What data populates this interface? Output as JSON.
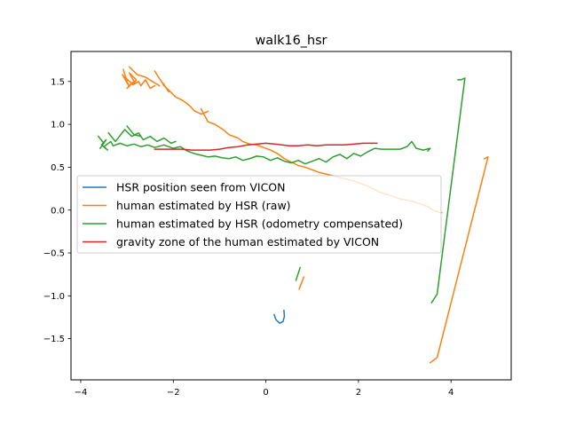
{
  "chart_data": {
    "type": "line",
    "title": "walk16_hsr",
    "xlabel": "",
    "ylabel": "",
    "xlim": [
      -4.21,
      5.3
    ],
    "ylim": [
      -1.98,
      1.85
    ],
    "xticks": [
      -4,
      -2,
      0,
      2,
      4
    ],
    "yticks": [
      -1.5,
      -1.0,
      -0.5,
      0.0,
      0.5,
      1.0,
      1.5
    ],
    "xtick_labels": [
      "−4",
      "−2",
      "0",
      "2",
      "4"
    ],
    "ytick_labels": [
      "−1.5",
      "−1.0",
      "−0.5",
      "0.0",
      "0.5",
      "1.0",
      "1.5"
    ],
    "grid": false,
    "legend_position": "center-left",
    "series": [
      {
        "name": "HSR position seen from VICON",
        "color": "#1f77b4",
        "segments": [
          [
            [
              0.18,
              -1.22
            ],
            [
              0.22,
              -1.28
            ],
            [
              0.3,
              -1.32
            ],
            [
              0.37,
              -1.3
            ],
            [
              0.4,
              -1.24
            ],
            [
              0.39,
              -1.17
            ]
          ]
        ]
      },
      {
        "name": "human estimated by HSR (raw)",
        "color": "#ff7f0e",
        "segments": [
          [
            [
              -3.08,
              1.64
            ],
            [
              -3.0,
              1.5
            ],
            [
              -3.1,
              1.58
            ],
            [
              -2.95,
              1.44
            ],
            [
              -3.05,
              1.55
            ],
            [
              -2.9,
              1.48
            ],
            [
              -3.0,
              1.42
            ],
            [
              -2.85,
              1.5
            ],
            [
              -2.95,
              1.6
            ],
            [
              -2.8,
              1.52
            ],
            [
              -2.88,
              1.46
            ],
            [
              -2.75,
              1.5
            ],
            [
              -2.7,
              1.45
            ],
            [
              -2.6,
              1.52
            ],
            [
              -2.5,
              1.42
            ],
            [
              -2.4,
              1.45
            ]
          ],
          [
            [
              -2.95,
              1.67
            ],
            [
              -2.78,
              1.58
            ],
            [
              -2.6,
              1.55
            ],
            [
              -2.45,
              1.5
            ],
            [
              -2.3,
              1.45
            ]
          ],
          [
            [
              -2.4,
              1.62
            ],
            [
              -2.2,
              1.45
            ],
            [
              -2.1,
              1.4
            ],
            [
              -1.95,
              1.32
            ],
            [
              -1.8,
              1.28
            ],
            [
              -1.65,
              1.22
            ],
            [
              -1.55,
              1.16
            ],
            [
              -1.4,
              1.12
            ],
            [
              -1.25,
              1.15
            ]
          ],
          [
            [
              -2.22,
              1.48
            ],
            [
              -2.1,
              1.38
            ]
          ],
          [
            [
              -1.4,
              1.18
            ],
            [
              -1.25,
              1.03
            ],
            [
              -1.1,
              1.0
            ],
            [
              -0.9,
              0.93
            ],
            [
              -0.8,
              0.88
            ],
            [
              -0.7,
              0.86
            ],
            [
              -0.6,
              0.84
            ],
            [
              -0.5,
              0.8
            ],
            [
              -0.35,
              0.77
            ],
            [
              -0.2,
              0.76
            ],
            [
              -0.05,
              0.73
            ],
            [
              0.1,
              0.7
            ],
            [
              0.25,
              0.66
            ],
            [
              0.4,
              0.6
            ],
            [
              0.55,
              0.56
            ],
            [
              0.7,
              0.52
            ],
            [
              0.85,
              0.5
            ],
            [
              1.0,
              0.47
            ],
            [
              1.15,
              0.44
            ],
            [
              1.3,
              0.42
            ],
            [
              1.45,
              0.4
            ],
            [
              1.6,
              0.38
            ],
            [
              1.75,
              0.36
            ],
            [
              1.9,
              0.34
            ],
            [
              2.05,
              0.31
            ],
            [
              2.2,
              0.28
            ],
            [
              2.35,
              0.24
            ],
            [
              2.5,
              0.2
            ],
            [
              2.7,
              0.17
            ],
            [
              2.9,
              0.13
            ],
            [
              3.1,
              0.11
            ],
            [
              3.25,
              0.09
            ],
            [
              3.4,
              0.06
            ],
            [
              3.5,
              0.04
            ],
            [
              3.6,
              0.0
            ],
            [
              3.7,
              -0.02
            ],
            [
              3.8,
              -0.03
            ]
          ],
          [
            [
              0.72,
              -0.92
            ],
            [
              0.82,
              -0.78
            ]
          ],
          [
            [
              3.55,
              -1.78
            ],
            [
              3.7,
              -1.72
            ],
            [
              4.8,
              0.62
            ],
            [
              4.72,
              0.6
            ],
            [
              4.8,
              0.62
            ]
          ]
        ]
      },
      {
        "name": "human estimated by HSR (odometry compensated)",
        "color": "#2ca02c",
        "segments": [
          [
            [
              -3.62,
              0.86
            ],
            [
              -3.5,
              0.78
            ],
            [
              -3.58,
              0.72
            ],
            [
              -3.45,
              0.82
            ],
            [
              -3.55,
              0.76
            ],
            [
              -3.42,
              0.7
            ],
            [
              -3.5,
              0.74
            ],
            [
              -3.35,
              0.8
            ],
            [
              -3.3,
              0.75
            ],
            [
              -3.15,
              0.78
            ],
            [
              -3.0,
              0.75
            ],
            [
              -2.85,
              0.77
            ],
            [
              -2.7,
              0.74
            ],
            [
              -2.55,
              0.76
            ],
            [
              -2.4,
              0.73
            ],
            [
              -2.2,
              0.76
            ],
            [
              -2.0,
              0.72
            ],
            [
              -1.85,
              0.74
            ],
            [
              -1.7,
              0.69
            ],
            [
              -1.55,
              0.66
            ],
            [
              -1.4,
              0.64
            ],
            [
              -1.25,
              0.62
            ],
            [
              -1.1,
              0.63
            ],
            [
              -0.95,
              0.61
            ],
            [
              -0.8,
              0.6
            ],
            [
              -0.65,
              0.62
            ],
            [
              -0.5,
              0.58
            ],
            [
              -0.35,
              0.6
            ],
            [
              -0.2,
              0.63
            ],
            [
              -0.05,
              0.62
            ],
            [
              0.1,
              0.58
            ],
            [
              0.25,
              0.61
            ],
            [
              0.4,
              0.57
            ],
            [
              0.55,
              0.55
            ],
            [
              0.7,
              0.58
            ],
            [
              0.85,
              0.54
            ],
            [
              1.0,
              0.57
            ],
            [
              1.15,
              0.6
            ],
            [
              1.3,
              0.56
            ],
            [
              1.45,
              0.62
            ],
            [
              1.6,
              0.65
            ],
            [
              1.75,
              0.6
            ],
            [
              1.9,
              0.66
            ],
            [
              2.05,
              0.63
            ],
            [
              2.2,
              0.68
            ],
            [
              2.35,
              0.72
            ],
            [
              2.5,
              0.71
            ],
            [
              2.7,
              0.71
            ],
            [
              2.9,
              0.71
            ],
            [
              3.05,
              0.74
            ],
            [
              3.15,
              0.8
            ],
            [
              3.25,
              0.72
            ],
            [
              3.4,
              0.7
            ],
            [
              3.55,
              0.72
            ],
            [
              3.5,
              0.69
            ]
          ],
          [
            [
              -3.4,
              0.9
            ],
            [
              -3.25,
              0.8
            ],
            [
              -3.05,
              0.94
            ],
            [
              -2.9,
              0.86
            ],
            [
              -2.75,
              0.9
            ],
            [
              -2.65,
              0.82
            ],
            [
              -2.5,
              0.86
            ],
            [
              -2.35,
              0.8
            ],
            [
              -2.2,
              0.84
            ],
            [
              -2.05,
              0.78
            ],
            [
              -1.95,
              0.8
            ]
          ],
          [
            [
              -3.0,
              0.98
            ],
            [
              -2.85,
              0.88
            ],
            [
              -2.7,
              0.86
            ]
          ],
          [
            [
              0.65,
              -0.82
            ],
            [
              0.74,
              -0.67
            ]
          ],
          [
            [
              3.58,
              -1.08
            ],
            [
              3.7,
              -0.98
            ],
            [
              4.3,
              1.54
            ],
            [
              4.22,
              1.52
            ],
            [
              4.15,
              1.52
            ]
          ]
        ]
      },
      {
        "name": "gravity zone of the human estimated by VICON",
        "color": "#d62728",
        "segments": [
          [
            [
              -2.4,
              0.71
            ],
            [
              -2.2,
              0.71
            ],
            [
              -2.0,
              0.71
            ],
            [
              -1.8,
              0.71
            ],
            [
              -1.6,
              0.7
            ],
            [
              -1.4,
              0.7
            ],
            [
              -1.2,
              0.7
            ],
            [
              -1.0,
              0.71
            ],
            [
              -0.8,
              0.73
            ],
            [
              -0.6,
              0.74
            ],
            [
              -0.4,
              0.76
            ],
            [
              -0.2,
              0.77
            ],
            [
              0.0,
              0.78
            ],
            [
              0.2,
              0.77
            ],
            [
              0.35,
              0.76
            ],
            [
              0.5,
              0.75
            ],
            [
              0.7,
              0.75
            ],
            [
              0.9,
              0.76
            ],
            [
              1.1,
              0.75
            ],
            [
              1.3,
              0.76
            ],
            [
              1.5,
              0.76
            ],
            [
              1.7,
              0.76
            ],
            [
              1.9,
              0.77
            ],
            [
              2.1,
              0.78
            ],
            [
              2.3,
              0.78
            ],
            [
              2.4,
              0.78
            ]
          ]
        ]
      }
    ]
  }
}
